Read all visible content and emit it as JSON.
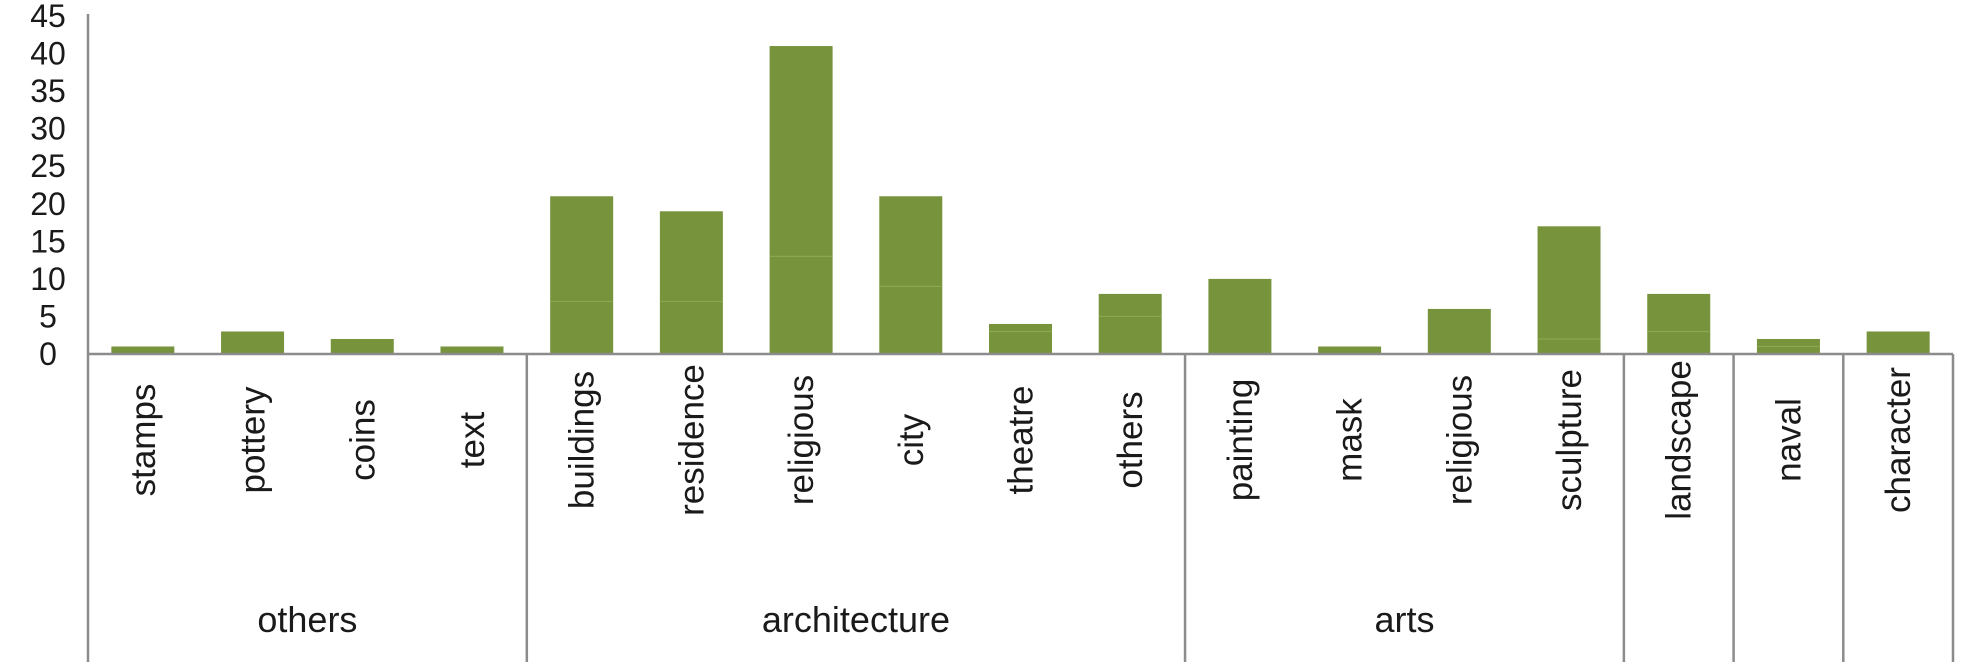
{
  "chart_data": {
    "type": "bar",
    "stacked": true,
    "color": "#77933c",
    "segment_line_color": "#8aa84f",
    "ylim": [
      0,
      45
    ],
    "yticks": [
      0,
      5,
      10,
      15,
      20,
      25,
      30,
      35,
      40,
      45
    ],
    "grid": false,
    "legend": "none",
    "groups": [
      {
        "label": "others",
        "categories": [
          {
            "label": "stamps",
            "segments": [
              1
            ]
          },
          {
            "label": "pottery",
            "segments": [
              3
            ]
          },
          {
            "label": "coins",
            "segments": [
              2
            ]
          },
          {
            "label": "text",
            "segments": [
              1
            ]
          }
        ]
      },
      {
        "label": "architecture",
        "categories": [
          {
            "label": "buildings",
            "segments": [
              7,
              14
            ]
          },
          {
            "label": "residence",
            "segments": [
              7,
              12
            ]
          },
          {
            "label": "religious",
            "segments": [
              13,
              28
            ]
          },
          {
            "label": "city",
            "segments": [
              9,
              12
            ]
          },
          {
            "label": "theatre",
            "segments": [
              3,
              1
            ]
          },
          {
            "label": "others",
            "segments": [
              5,
              3
            ]
          }
        ]
      },
      {
        "label": "arts",
        "categories": [
          {
            "label": "painting",
            "segments": [
              10
            ]
          },
          {
            "label": "mask",
            "segments": [
              1
            ]
          },
          {
            "label": "religious",
            "segments": [
              6
            ]
          },
          {
            "label": "sculpture",
            "segments": [
              2,
              15
            ]
          }
        ]
      },
      {
        "label": "",
        "categories": [
          {
            "label": "landscape",
            "segments": [
              3,
              5
            ]
          }
        ]
      },
      {
        "label": "",
        "categories": [
          {
            "label": "naval",
            "segments": [
              1,
              1
            ]
          }
        ]
      },
      {
        "label": "",
        "categories": [
          {
            "label": "character",
            "segments": [
              3
            ]
          }
        ]
      }
    ]
  }
}
